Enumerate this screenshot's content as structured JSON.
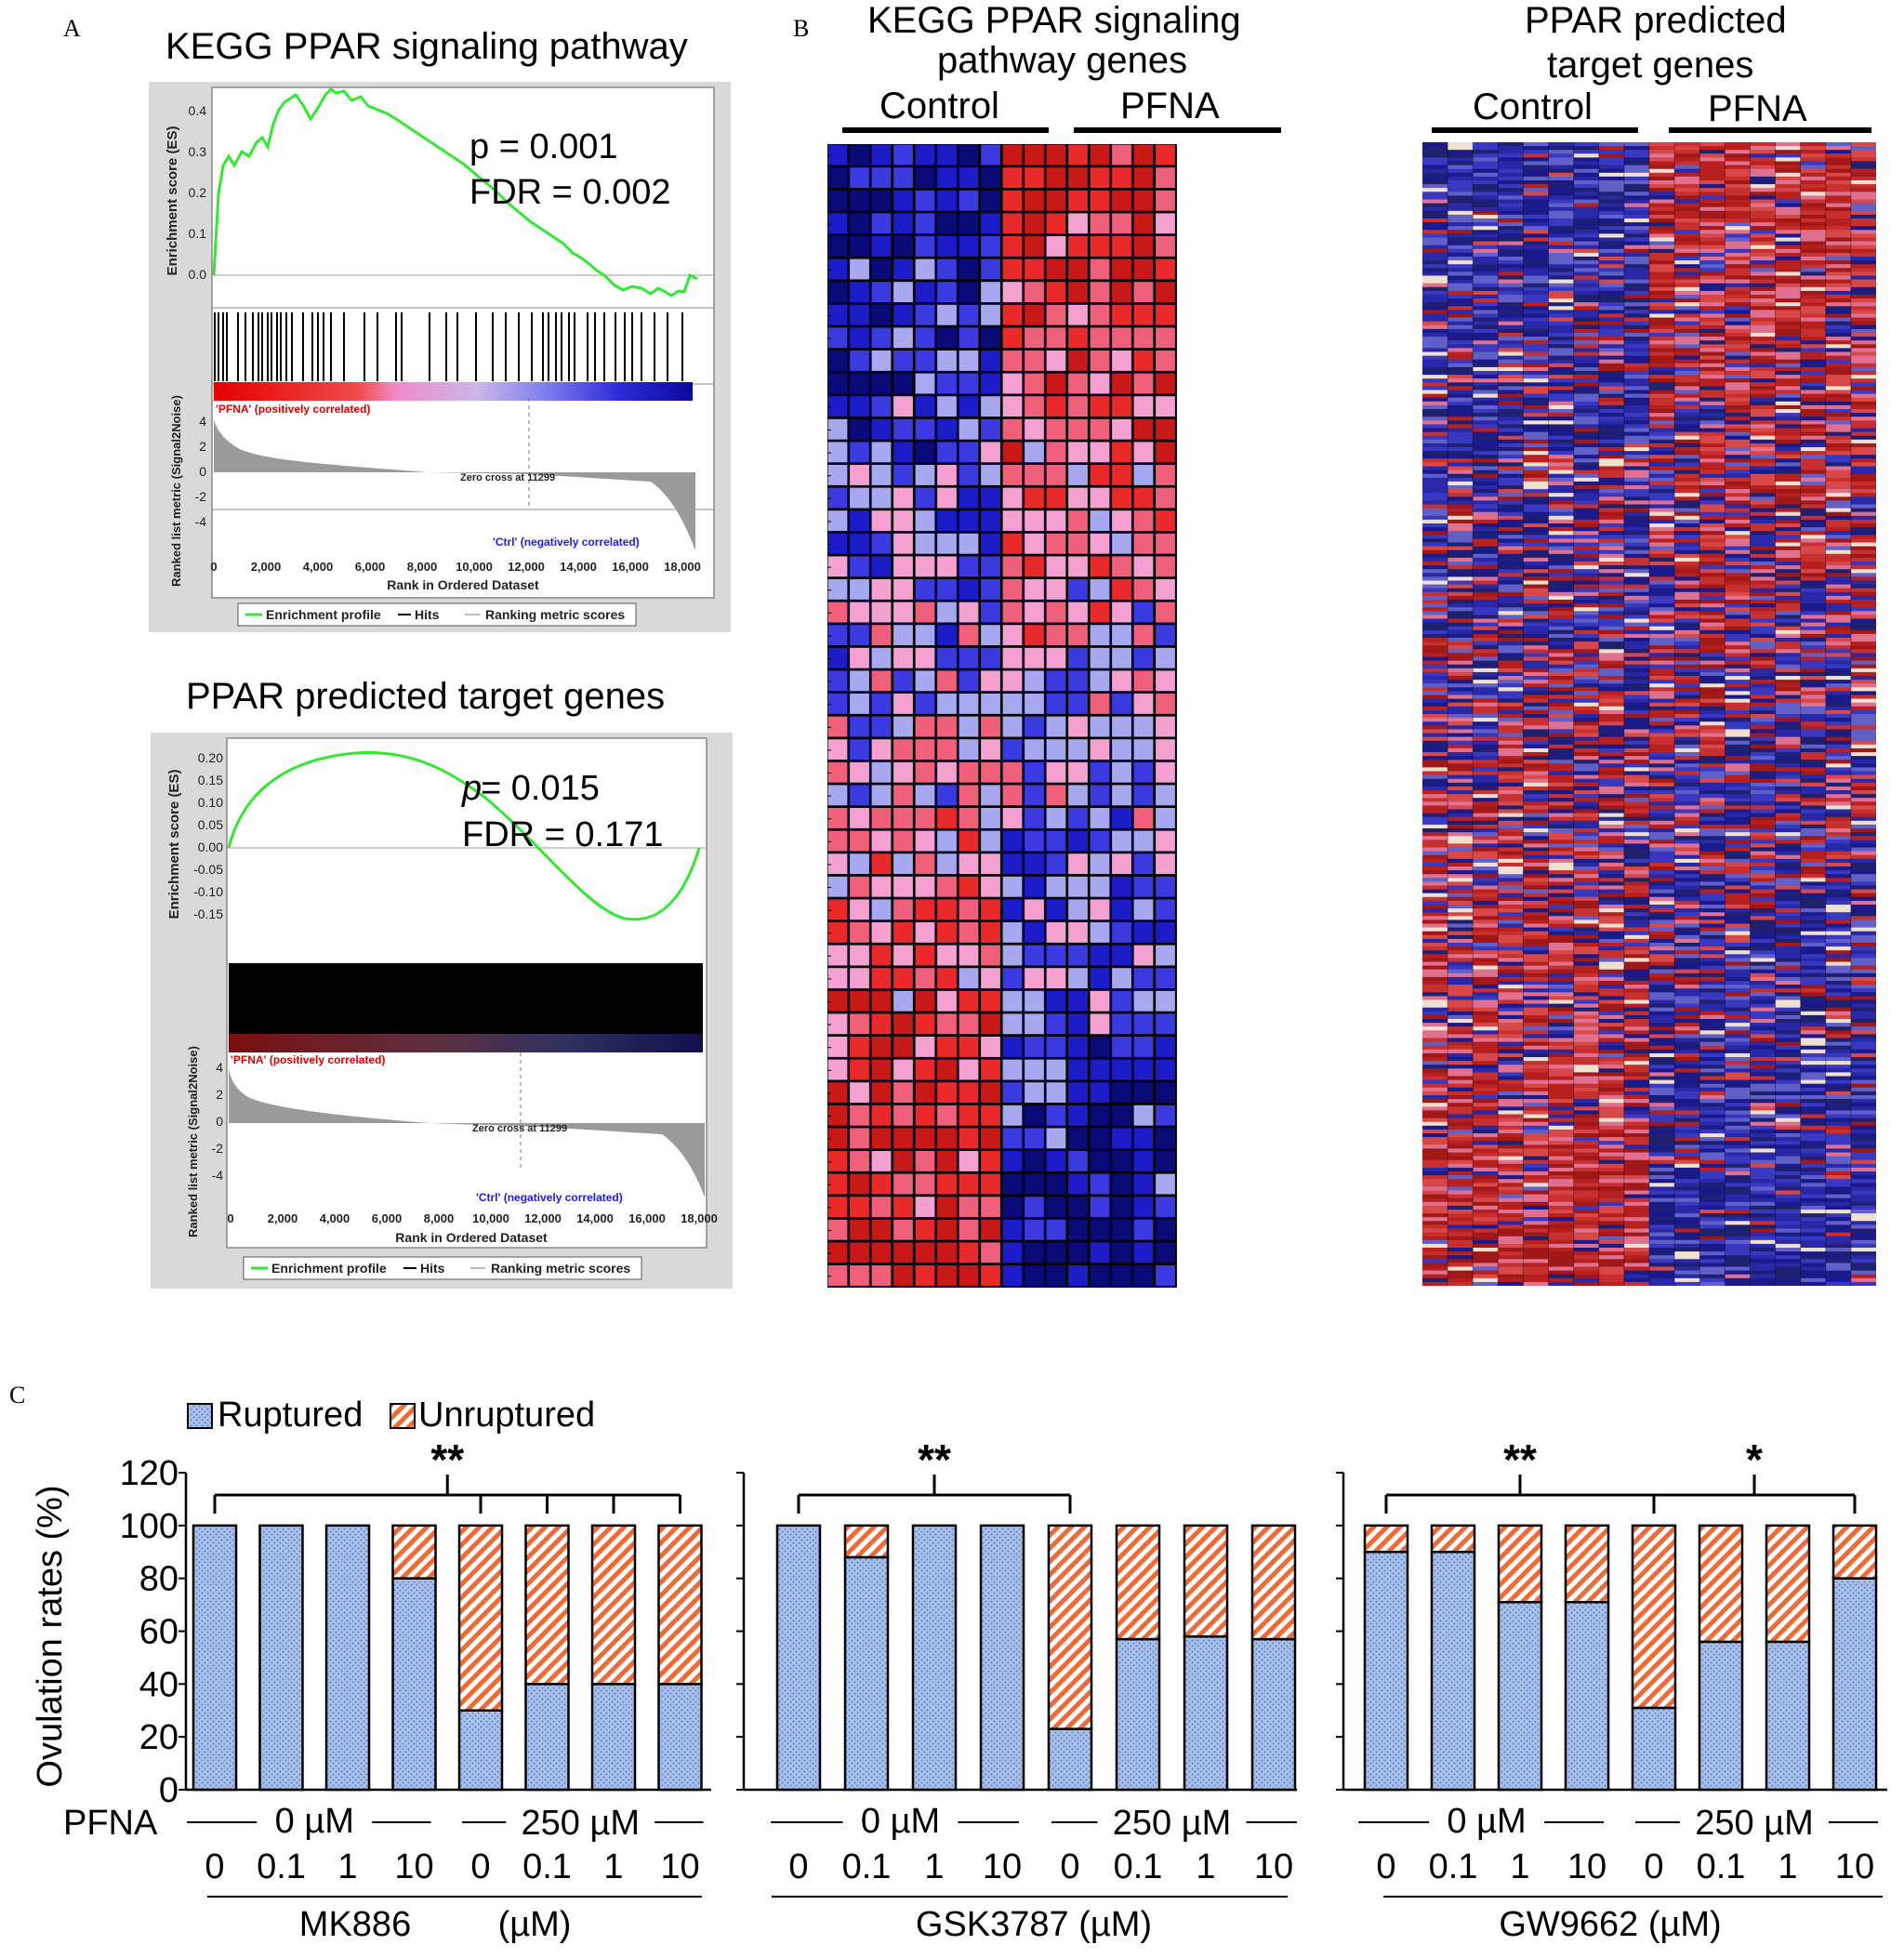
{
  "panels": {
    "a": "A",
    "b": "B",
    "c": "C"
  },
  "gsea_kegg": {
    "title": "KEGG PPAR signaling pathway",
    "p_text": "p = 0.001",
    "fdr_text": "FDR = 0.002",
    "es_ylabel": "Enrichment score (ES)",
    "es_ticks": [
      "0.4",
      "0.3",
      "0.2",
      "0.1",
      "0.0"
    ],
    "pos_label": "'PFNA' (positively correlated)",
    "neg_label": "'Ctrl' (negatively correlated)",
    "zero_cross": "Zero cross at 11299",
    "metric_ylabel": "Ranked list metric (Signal2Noise)",
    "metric_ticks": [
      "4",
      "2",
      "0",
      "-2",
      "-4"
    ],
    "x_ticks": [
      "0",
      "2,000",
      "4,000",
      "6,000",
      "8,000",
      "10,000",
      "12,000",
      "14,000",
      "16,000",
      "18,000"
    ],
    "xlabel": "Rank in Ordered Dataset",
    "legend": [
      "Enrichment profile",
      "Hits",
      "Ranking metric scores"
    ]
  },
  "gsea_target": {
    "title": "PPAR predicted target genes",
    "p_italic": "p",
    "p_value": " = 0.015",
    "fdr_text": "FDR = 0.171",
    "es_ylabel": "Enrichment score (ES)",
    "es_ticks": [
      "0.20",
      "0.15",
      "0.10",
      "0.05",
      "0.00",
      "-0.05",
      "-0.10",
      "-0.15"
    ],
    "pos_label": "'PFNA' (positively correlated)",
    "neg_label": "'Ctrl' (negatively correlated)",
    "zero_cross": "Zero cross at 11299",
    "metric_ylabel": "Ranked list metric (Signal2Noise)",
    "metric_ticks": [
      "4",
      "2",
      "0",
      "-2",
      "-4"
    ],
    "x_ticks": [
      "0",
      "2,000",
      "4,000",
      "6,000",
      "8,000",
      "10,000",
      "12,000",
      "14,000",
      "16,000",
      "18,000"
    ],
    "xlabel": "Rank in Ordered Dataset",
    "legend": [
      "Enrichment profile",
      "Hits",
      "Ranking metric scores"
    ]
  },
  "heatmap_kegg": {
    "title_line1": "KEGG PPAR signaling",
    "title_line2": "pathway genes",
    "group_left": "Control",
    "group_right": "PFNA"
  },
  "heatmap_target": {
    "title_line1": "PPAR predicted",
    "title_line2": "target genes",
    "group_left": "Control",
    "group_right": "PFNA"
  },
  "colors": {
    "ruptured": "#a9c1ea",
    "unruptured": "#ee6a38",
    "es_curve": "#33e833",
    "heat_red": "#e8282a",
    "heat_blue": "#1414a0"
  },
  "chart_data": {
    "type": "bar",
    "stacked": true,
    "ylabel": "Ovulation rates (%)",
    "ylim": [
      0,
      120
    ],
    "yticks": [
      "0",
      "20",
      "40",
      "60",
      "80",
      "100",
      "120"
    ],
    "legend": [
      "Ruptured",
      "Unruptured"
    ],
    "row_label": "PFNA",
    "dose_labels": [
      "0 µM",
      "250 µM"
    ],
    "categories": [
      "0",
      "0.1",
      "1",
      "10",
      "0",
      "0.1",
      "1",
      "10"
    ],
    "groups": [
      {
        "name": "MK886",
        "unit": "(µM)",
        "ruptured": [
          100,
          100,
          100,
          80,
          30,
          40,
          40,
          40
        ],
        "significance": [
          {
            "label": "**",
            "from": 0,
            "to": [
              4,
              5,
              6,
              7
            ]
          }
        ]
      },
      {
        "name": "GSK3787 (µM)",
        "unit": "",
        "ruptured": [
          100,
          88,
          100,
          100,
          23,
          57,
          58,
          57
        ],
        "significance": [
          {
            "label": "**",
            "from": 0,
            "to": [
              4
            ]
          }
        ]
      },
      {
        "name": "GW9662 (µM)",
        "unit": "",
        "ruptured": [
          90,
          90,
          71,
          71,
          31,
          56,
          56,
          80
        ],
        "significance": [
          {
            "label": "**",
            "from": 0,
            "to": [
              4
            ]
          },
          {
            "label": "*",
            "from": 4,
            "to": [
              7
            ]
          }
        ]
      }
    ]
  }
}
